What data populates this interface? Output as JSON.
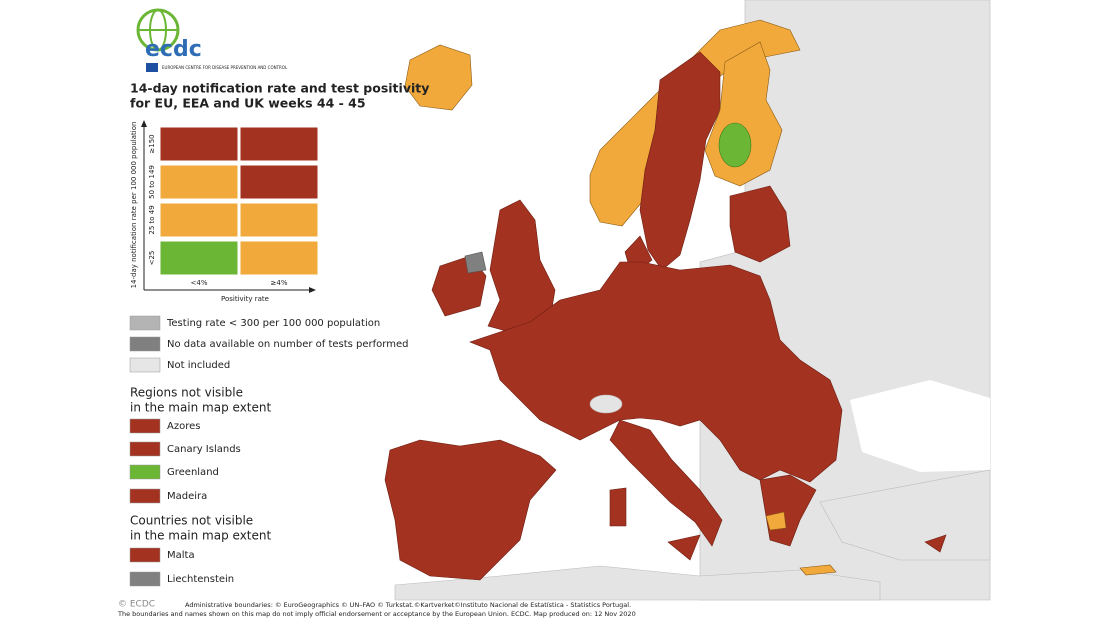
{
  "logo": {
    "name": "ecdc",
    "subtitle": "EUROPEAN CENTRE FOR DISEASE PREVENTION AND CONTROL"
  },
  "title": [
    "14-day notification rate and test positivity",
    "for EU, EEA and UK weeks 44 - 45"
  ],
  "matrix": {
    "y_label": "14-day notification rate per 100 000 population",
    "rows": [
      {
        "label": "≥150",
        "cells": [
          "#a33220",
          "#a33220"
        ]
      },
      {
        "label": "50 to 149",
        "cells": [
          "#f2a93b",
          "#a33220"
        ]
      },
      {
        "label": "25 to 49",
        "cells": [
          "#f2a93b",
          "#f2a93b"
        ]
      },
      {
        "label": "<25",
        "cells": [
          "#6bb634",
          "#f2a93b"
        ]
      }
    ],
    "columns": [
      "<4%",
      "≥4%"
    ],
    "x_label": "Positivity rate"
  },
  "legend": [
    {
      "label": "Testing rate < 300 per 100 000 population",
      "color": "#b4b4b4"
    },
    {
      "label": "No data available on number of tests performed",
      "color": "#808080"
    },
    {
      "label": "Not included",
      "color": "#e6e6e6"
    }
  ],
  "regions": {
    "heading": [
      "Regions not visible",
      "in the main map extent"
    ],
    "items": [
      {
        "label": "Azores",
        "color": "#a33220"
      },
      {
        "label": "Canary Islands",
        "color": "#a33220"
      },
      {
        "label": "Greenland",
        "color": "#6bb634"
      },
      {
        "label": "Madeira",
        "color": "#a33220"
      }
    ]
  },
  "countries": {
    "heading": [
      "Countries not visible",
      "in the main map extent"
    ],
    "items": [
      {
        "label": "Malta",
        "color": "#a33220"
      },
      {
        "label": "Liechtenstein",
        "color": "#808080"
      }
    ]
  },
  "watermark": "© ECDC",
  "footer": [
    "Administrative boundaries: © EuroGeographics © UN–FAO © Turkstat.©Kartverket©Instituto Nacional de Estatística - Statistics Portugal.",
    "The boundaries and names shown on this map do not imply official endorsement or acceptance by the European Union. ECDC. Map produced on: 12 Nov 2020"
  ]
}
